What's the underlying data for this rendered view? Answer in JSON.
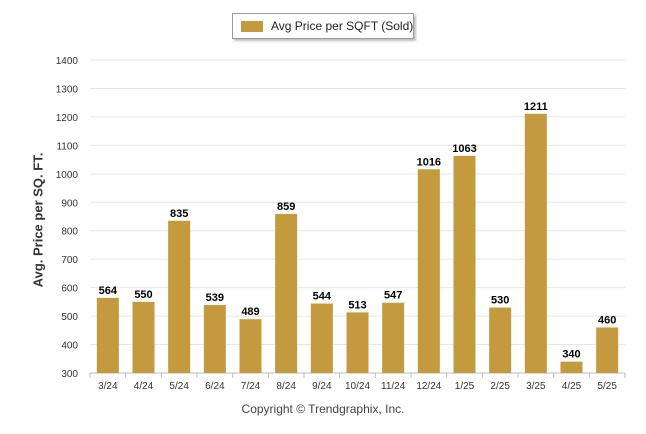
{
  "legend": {
    "label": "Avg Price per SQFT (Sold)"
  },
  "credit": "Copyright © Trendgraphix, Inc.",
  "colors": {
    "bar": "#C39A3E",
    "grid": "#e6e6e6",
    "axis": "#bdbdbd"
  },
  "chart_data": {
    "type": "bar",
    "title": "",
    "xlabel": "",
    "ylabel": "Avg. Price per SQ. FT.",
    "categories": [
      "3/24",
      "4/24",
      "5/24",
      "6/24",
      "7/24",
      "8/24",
      "9/24",
      "10/24",
      "11/24",
      "12/24",
      "1/25",
      "2/25",
      "3/25",
      "4/25",
      "5/25"
    ],
    "series": [
      {
        "name": "Avg Price per SQFT (Sold)",
        "values": [
          564,
          550,
          835,
          539,
          489,
          859,
          544,
          513,
          547,
          1016,
          1063,
          530,
          1211,
          340,
          460
        ]
      }
    ],
    "ylim": [
      300,
      1400
    ],
    "yticks": [
      300,
      400,
      500,
      600,
      700,
      800,
      900,
      1000,
      1100,
      1200,
      1300,
      1400
    ],
    "grid": true,
    "legend_position": "top-center",
    "data_labels": true
  }
}
